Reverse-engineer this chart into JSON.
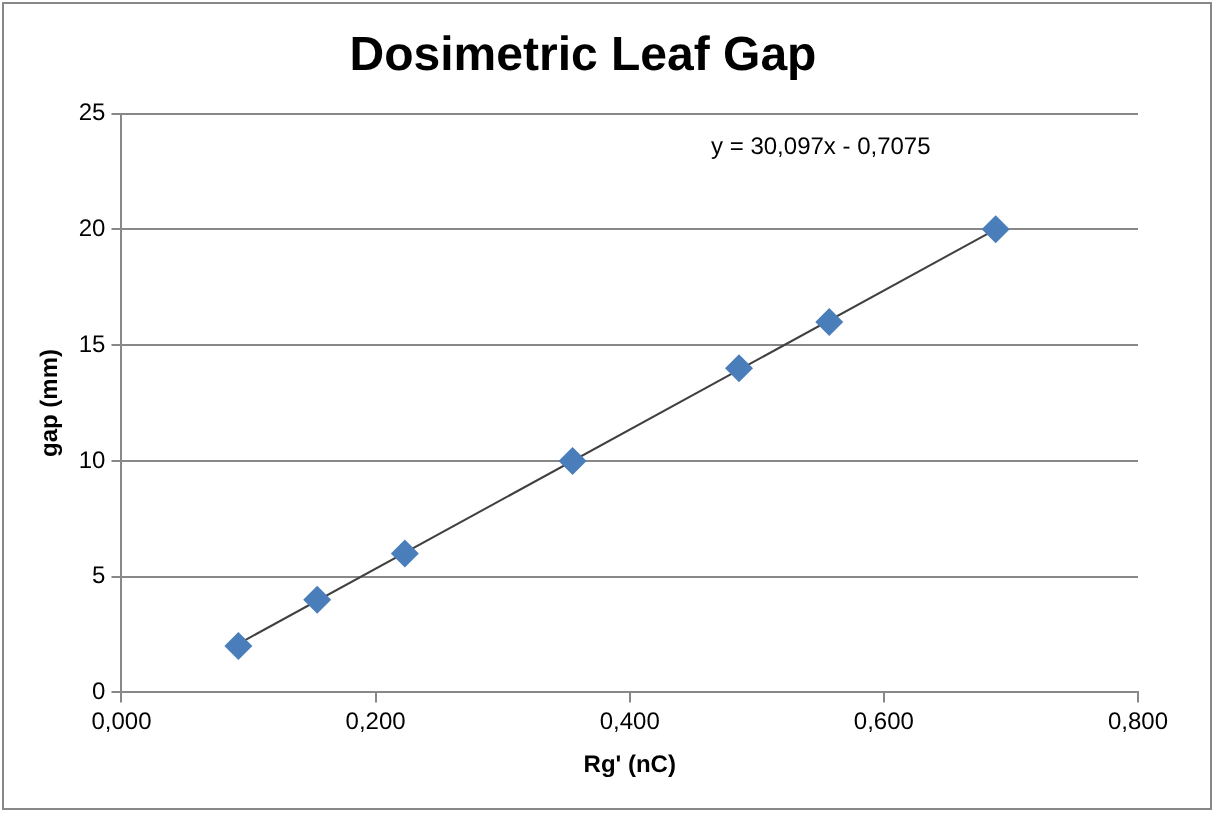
{
  "chart_data": {
    "type": "scatter",
    "title": "Dosimetric Leaf Gap",
    "xlabel": "Rg' (nC)",
    "ylabel": "gap (mm)",
    "annotations": [
      "y = 30,097x - 0,7075"
    ],
    "series": [
      {
        "color": "#4a7ebb",
        "x": [
          0.092,
          0.154,
          0.223,
          0.355,
          0.486,
          0.557,
          0.688
        ],
        "values": [
          2,
          4,
          6,
          10,
          14,
          16,
          20
        ],
        "marker": "diamond"
      },
      {
        "type": "line",
        "color": "#404040",
        "x": [
          0.092,
          0.688
        ],
        "values": [
          2.1,
          20.0
        ],
        "marker": "none"
      }
    ],
    "xlim": [
      0,
      0.8
    ],
    "xticks": [
      {
        "value": 0,
        "label": "0,000"
      },
      {
        "value": 0.2,
        "label": "0,200"
      },
      {
        "value": 0.4,
        "label": "0,400"
      },
      {
        "value": 0.6,
        "label": "0,600"
      },
      {
        "value": 0.8,
        "label": "0,800"
      }
    ],
    "ylim": [
      0,
      25
    ],
    "yticks": [
      0,
      5,
      10,
      15,
      20,
      25
    ],
    "grid": "y",
    "legend": false
  }
}
